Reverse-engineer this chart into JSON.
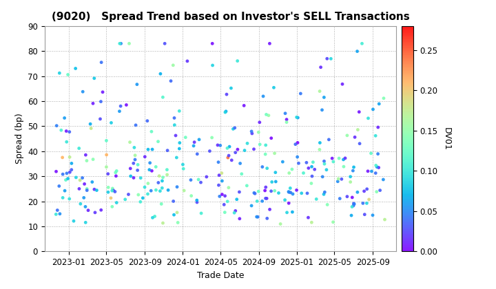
{
  "title": "(9020)   Spread Trend based on Investor's SELL Transactions",
  "xlabel": "Trade Date",
  "ylabel": "Spread (bp)",
  "colorbar_label": "DV01",
  "xlim_start": "2022-10-15",
  "xlim_end": "2025-11-15",
  "ylim": [
    0,
    90
  ],
  "yticks": [
    0,
    10,
    20,
    30,
    40,
    50,
    60,
    70,
    80,
    90
  ],
  "xtick_labels": [
    "2023-01",
    "2023-05",
    "2023-09",
    "2024-01",
    "2024-05",
    "2024-09",
    "2025-01",
    "2025-05",
    "2025-09"
  ],
  "colorbar_ticks": [
    0.0,
    0.05,
    0.1,
    0.15,
    0.2,
    0.25
  ],
  "cmap": "rainbow",
  "clim": [
    0.0,
    0.28
  ],
  "background_color": "#ffffff",
  "plot_bg_color": "#ffffff",
  "grid_color": "#aaaaaa",
  "seed": 42,
  "n_points": 350
}
